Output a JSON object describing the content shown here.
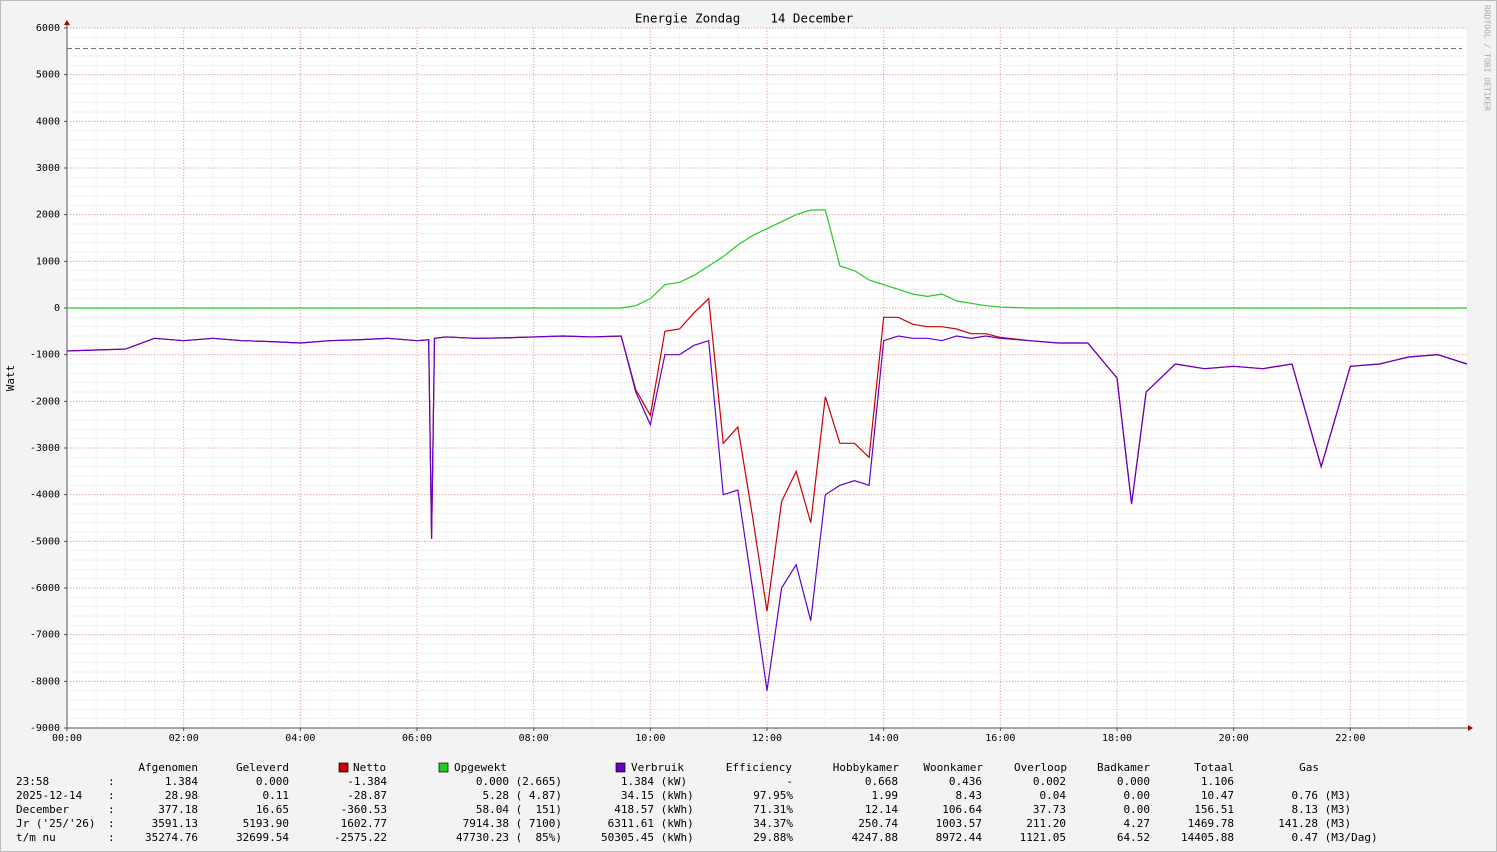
{
  "chart_data": {
    "type": "line",
    "title": "Energie Zondag    14 December",
    "y_label": "Watt",
    "watermark": "RRDTOOL / TOBI OETIKER",
    "xlim": [
      0,
      24
    ],
    "ylim": [
      -9000,
      6000
    ],
    "xticks": [
      {
        "value": 0,
        "label": "00:00"
      },
      {
        "value": 2,
        "label": "02:00"
      },
      {
        "value": 4,
        "label": "04:00"
      },
      {
        "value": 6,
        "label": "06:00"
      },
      {
        "value": 8,
        "label": "08:00"
      },
      {
        "value": 10,
        "label": "10:00"
      },
      {
        "value": 12,
        "label": "12:00"
      },
      {
        "value": 14,
        "label": "14:00"
      },
      {
        "value": 16,
        "label": "16:00"
      },
      {
        "value": 18,
        "label": "18:00"
      },
      {
        "value": 20,
        "label": "20:00"
      },
      {
        "value": 22,
        "label": "22:00"
      }
    ],
    "yticks": [
      -9000,
      -8000,
      -7000,
      -6000,
      -5000,
      -4000,
      -3000,
      -2000,
      -1000,
      0,
      1000,
      2000,
      3000,
      4000,
      5000,
      6000
    ],
    "grid": true,
    "reference_line": 5560,
    "x": [
      0,
      0.5,
      1,
      1.5,
      2,
      2.5,
      3,
      3.5,
      4,
      4.5,
      5,
      5.5,
      6,
      6.2,
      6.25,
      6.3,
      6.5,
      7,
      7.5,
      8,
      8.5,
      9,
      9.5,
      9.75,
      10,
      10.25,
      10.5,
      10.75,
      11,
      11.25,
      11.5,
      11.75,
      12,
      12.25,
      12.5,
      12.75,
      13,
      13.25,
      13.5,
      13.75,
      14,
      14.25,
      14.5,
      14.75,
      15,
      15.25,
      15.5,
      15.75,
      16,
      16.5,
      17,
      17.5,
      18,
      18.25,
      18.5,
      19,
      19.5,
      20,
      20.5,
      21,
      21.5,
      22,
      22.5,
      23,
      23.5,
      24
    ],
    "series": [
      {
        "name": "Netto",
        "color": "#cc0000",
        "values": [
          -920,
          -900,
          -880,
          -650,
          -700,
          -650,
          -700,
          -720,
          -750,
          -700,
          -680,
          -650,
          -700,
          -680,
          -4950,
          -650,
          -620,
          -650,
          -640,
          -620,
          -600,
          -620,
          -600,
          -1750,
          -2300,
          -500,
          -450,
          -100,
          200,
          -2900,
          -2550,
          -4450,
          -6500,
          -4150,
          -3500,
          -4600,
          -1900,
          -2900,
          -2900,
          -3200,
          -200,
          -200,
          -350,
          -400,
          -400,
          -450,
          -550,
          -550,
          -630,
          -700,
          -750,
          -750,
          -1500,
          -4200,
          -1800,
          -1200,
          -1300,
          -1250,
          -1300,
          -1200,
          -3400,
          -1250,
          -1200,
          -1050,
          -1000,
          -1200
        ]
      },
      {
        "name": "Opgewekt",
        "color": "#22cc22",
        "values": [
          0,
          0,
          0,
          0,
          0,
          0,
          0,
          0,
          0,
          0,
          0,
          0,
          0,
          0,
          0,
          0,
          0,
          0,
          0,
          0,
          0,
          0,
          0,
          50,
          200,
          500,
          550,
          700,
          900,
          1100,
          1350,
          1550,
          1700,
          1850,
          2000,
          2100,
          2100,
          900,
          800,
          600,
          500,
          400,
          300,
          250,
          300,
          150,
          100,
          50,
          20,
          0,
          0,
          0,
          0,
          0,
          0,
          0,
          0,
          0,
          0,
          0,
          0,
          0,
          0,
          0,
          0,
          0
        ]
      },
      {
        "name": "Verbruik",
        "color": "#6600cc",
        "values": [
          -920,
          -900,
          -880,
          -650,
          -700,
          -650,
          -700,
          -720,
          -750,
          -700,
          -680,
          -650,
          -700,
          -680,
          -4950,
          -650,
          -620,
          -650,
          -640,
          -620,
          -600,
          -620,
          -600,
          -1800,
          -2500,
          -1000,
          -1000,
          -800,
          -700,
          -4000,
          -3900,
          -6000,
          -8200,
          -6000,
          -5500,
          -6700,
          -4000,
          -3800,
          -3700,
          -3800,
          -700,
          -600,
          -650,
          -650,
          -700,
          -600,
          -650,
          -600,
          -650,
          -700,
          -750,
          -750,
          -1500,
          -4200,
          -1800,
          -1200,
          -1300,
          -1250,
          -1300,
          -1200,
          -3400,
          -1250,
          -1200,
          -1050,
          -1000,
          -1200
        ]
      }
    ]
  },
  "table": {
    "header": [
      "Afgenomen",
      "Geleverd",
      "Efficiency",
      "Hobbykamer",
      "Woonkamer",
      "Overloop",
      "Badkamer",
      "Totaal",
      "Gas"
    ],
    "rows": [
      [
        "23:58",
        ":",
        "1.384",
        "0.000",
        "-1.384",
        "0.000 (2.665)",
        "1.384 (kW)",
        "-",
        "0.668",
        "0.436",
        "0.002",
        "0.000",
        "1.106",
        null
      ],
      [
        "2025-12-14",
        ":",
        "28.98",
        "0.11",
        "-28.87",
        "5.28 ( 4.87)",
        "34.15 (kWh)",
        "97.95%",
        "1.99",
        "8.43",
        "0.04",
        "0.00",
        "10.47",
        "0.76 (M3)"
      ],
      [
        "December",
        ":",
        "377.18",
        "16.65",
        "-360.53",
        "58.04 (  151)",
        "418.57 (kWh)",
        "71.31%",
        "12.14",
        "106.64",
        "37.73",
        "0.00",
        "156.51",
        "8.13 (M3)"
      ],
      [
        "Jr ('25/'26)",
        ":",
        "3591.13",
        "5193.90",
        "1602.77",
        "7914.38 ( 7100)",
        "6311.61 (kWh)",
        "34.37%",
        "250.74",
        "1003.57",
        "211.20",
        "4.27",
        "1469.78",
        "141.28 (M3)"
      ],
      [
        "t/m nu",
        ":",
        "35274.76",
        "32699.54",
        "-2575.22",
        "47730.23 (  85%)",
        "50305.45 (kWh)",
        "29.88%",
        "4247.88",
        "8972.44",
        "1121.05",
        "64.52",
        "14405.88",
        "0.47 (M3/Dag)"
      ]
    ]
  }
}
